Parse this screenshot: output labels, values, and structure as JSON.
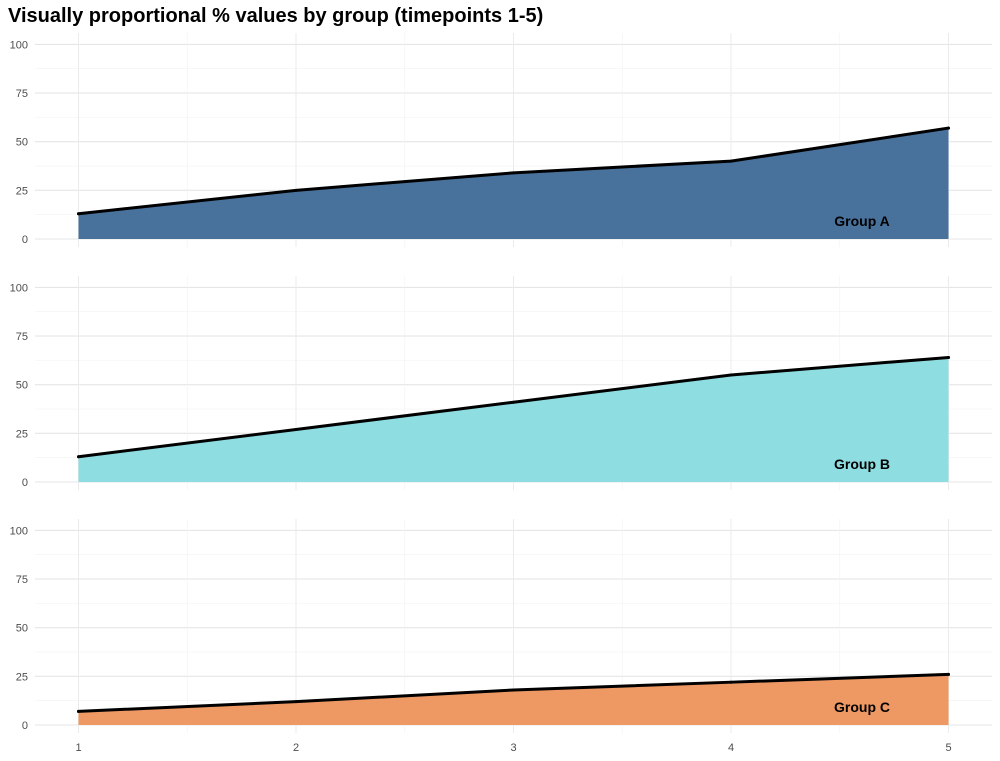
{
  "chart_data": {
    "type": "area",
    "title": "Visually proportional % values by group (timepoints 1-5)",
    "xlabel": "",
    "ylabel": "",
    "x": [
      1,
      2,
      3,
      4,
      5
    ],
    "x_ticks": [
      "1",
      "2",
      "3",
      "4",
      "5"
    ],
    "xlim": [
      0.8,
      5.2
    ],
    "y_ticks": [
      "0",
      "25",
      "50",
      "75",
      "100"
    ],
    "ylim": [
      0,
      100
    ],
    "grid": true,
    "facets": "stacked vertically, shared x-axis",
    "series": [
      {
        "name": "Group A",
        "label": "Group A",
        "color": "#2f5f8f",
        "values": [
          13,
          25,
          34,
          40,
          57
        ]
      },
      {
        "name": "Group B",
        "label": "Group B",
        "color": "#7fd8dd",
        "values": [
          13,
          27,
          41,
          55,
          64
        ]
      },
      {
        "name": "Group C",
        "label": "Group C",
        "color": "#ec8a4e",
        "values": [
          7,
          12,
          18,
          22,
          26
        ]
      }
    ]
  }
}
